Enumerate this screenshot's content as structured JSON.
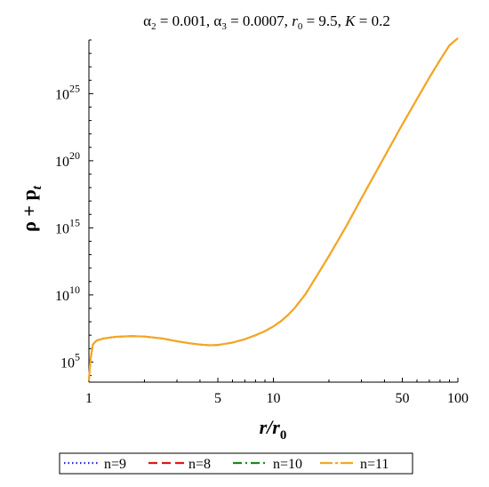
{
  "chart_data": {
    "type": "line",
    "title_parts": {
      "a2_sym": "α",
      "a2_sub": "2",
      "a2_val": " = 0.001, ",
      "a3_sym": "α",
      "a3_sub": "3",
      "a3_val": " = 0.0007, ",
      "r0_sym": "r",
      "r0_sub": "0",
      "r0_val": " = 9.5, ",
      "k_sym": "K",
      "k_val": " = 0.2"
    },
    "xlabel": {
      "main": "r/r",
      "sub": "0"
    },
    "ylabel": {
      "main": "ρ + p",
      "sub": "t"
    },
    "x_scale": "log",
    "y_scale": "log",
    "xlim": [
      1,
      100
    ],
    "ylim_log10": [
      3.5,
      29
    ],
    "x_ticks": [
      1,
      5,
      10,
      50,
      100
    ],
    "x_tick_labels": [
      "1",
      "5",
      "10",
      "50",
      "100"
    ],
    "y_ticks": [
      {
        "base": "10",
        "exp": "5",
        "log10": 5
      },
      {
        "base": "10",
        "exp": "10",
        "log10": 10
      },
      {
        "base": "10",
        "exp": "15",
        "log10": 15
      },
      {
        "base": "10",
        "exp": "20",
        "log10": 20
      },
      {
        "base": "10",
        "exp": "25",
        "log10": 25
      }
    ],
    "x": [
      1.0,
      1.02,
      1.05,
      1.1,
      1.2,
      1.4,
      1.7,
      2.0,
      2.5,
      3.0,
      3.5,
      4.0,
      4.5,
      5.0,
      6.0,
      7.0,
      8.0,
      9.0,
      10.0,
      11.0,
      12.0,
      13.0,
      15.0,
      20.0,
      25.0,
      30.0,
      40.0,
      50.0,
      60.0,
      70.0,
      80.0,
      90.0,
      100.0
    ],
    "series": [
      {
        "name": "n=9",
        "color": "#1f2fd6",
        "dash": "dotted",
        "y_log10": [
          3.6,
          5.2,
          6.3,
          6.6,
          6.75,
          6.88,
          6.93,
          6.9,
          6.75,
          6.55,
          6.4,
          6.3,
          6.25,
          6.27,
          6.45,
          6.7,
          7.0,
          7.3,
          7.65,
          8.05,
          8.5,
          9.0,
          10.1,
          12.9,
          15.2,
          17.2,
          20.3,
          22.7,
          24.6,
          26.2,
          27.5,
          28.6,
          29.6
        ]
      },
      {
        "name": "n=8",
        "color": "#e01818",
        "dash": "dashed",
        "y_log10": [
          3.6,
          5.2,
          6.3,
          6.6,
          6.75,
          6.88,
          6.93,
          6.9,
          6.75,
          6.55,
          6.4,
          6.3,
          6.25,
          6.27,
          6.45,
          6.7,
          7.0,
          7.3,
          7.65,
          8.05,
          8.5,
          9.0,
          10.1,
          12.9,
          15.2,
          17.2,
          20.3,
          22.7,
          24.6,
          26.2,
          27.5,
          28.6,
          29.6
        ]
      },
      {
        "name": "n=10",
        "color": "#1a8a1a",
        "dash": "dashdot",
        "y_log10": [
          3.6,
          5.2,
          6.3,
          6.6,
          6.75,
          6.88,
          6.93,
          6.9,
          6.75,
          6.55,
          6.4,
          6.3,
          6.25,
          6.27,
          6.45,
          6.7,
          7.0,
          7.3,
          7.65,
          8.05,
          8.5,
          9.0,
          10.1,
          12.9,
          15.2,
          17.2,
          20.3,
          22.7,
          24.6,
          26.2,
          27.5,
          28.6,
          29.6
        ]
      },
      {
        "name": "n=11",
        "color": "#f5a623",
        "dash": "longdash",
        "y_log10": [
          3.6,
          5.2,
          6.3,
          6.6,
          6.75,
          6.88,
          6.93,
          6.9,
          6.75,
          6.55,
          6.4,
          6.3,
          6.25,
          6.27,
          6.45,
          6.7,
          7.0,
          7.3,
          7.65,
          8.05,
          8.5,
          9.0,
          10.1,
          12.9,
          15.2,
          17.2,
          20.3,
          22.7,
          24.6,
          26.2,
          27.5,
          28.6,
          29.6
        ]
      }
    ],
    "legend_position": "bottom"
  }
}
